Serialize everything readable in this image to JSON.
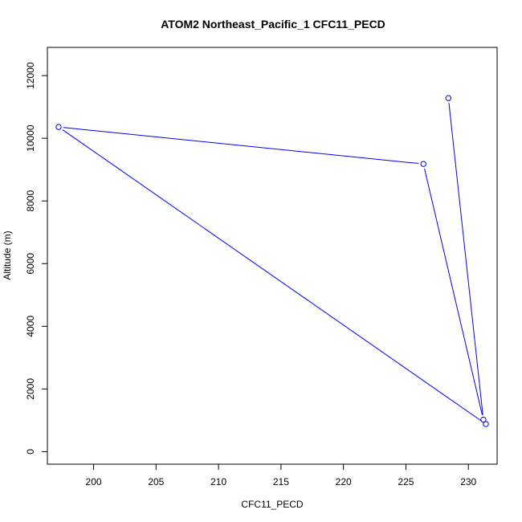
{
  "chart_data": {
    "type": "line",
    "title": "ATOM2 Northeast_Pacific_1 CFC11_PECD",
    "xlabel": "CFC11_PECD",
    "ylabel": "Altitude (m)",
    "xlim": [
      196.3,
      232.3
    ],
    "ylim": [
      -400,
      12900
    ],
    "x_ticks": [
      200,
      205,
      210,
      215,
      220,
      225,
      230
    ],
    "y_ticks": [
      0,
      2000,
      4000,
      6000,
      8000,
      10000,
      12000
    ],
    "grid": false,
    "series": [
      {
        "color": "#0000ff",
        "marker": "open-circle",
        "x": [
          228.4,
          231.2,
          226.4,
          197.2,
          231.4
        ],
        "y": [
          11280,
          1020,
          9180,
          10360,
          880
        ]
      }
    ]
  }
}
